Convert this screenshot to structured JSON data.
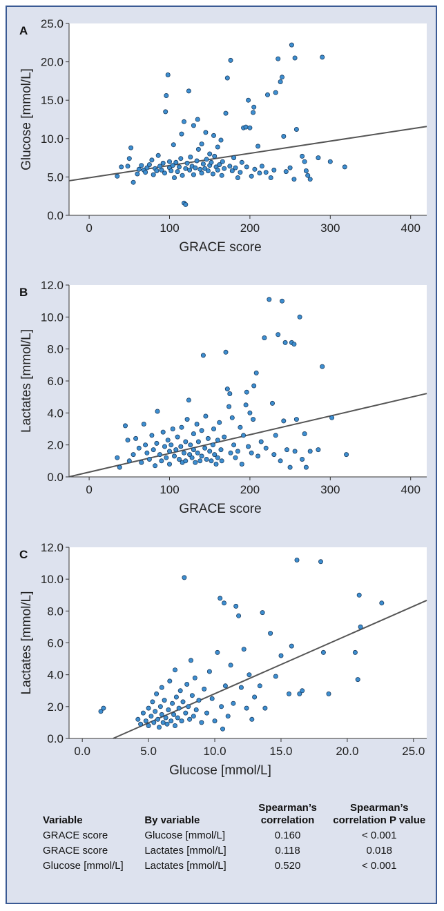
{
  "chart_data": [
    {
      "panel": "A",
      "type": "scatter",
      "xlabel": "GRACE score",
      "ylabel": "Glucose [mmol/L]",
      "xlim": [
        -25,
        420
      ],
      "ylim": [
        0,
        25.0
      ],
      "xticks": [
        "0",
        "100",
        "200",
        "300",
        "400"
      ],
      "yticks": [
        "0.0",
        "5.0",
        "10.0",
        "15.0",
        "20.0",
        "25.0"
      ],
      "fit_line": {
        "intercept": 4.9,
        "slope": 0.0159
      },
      "points": [
        [
          35,
          5.1
        ],
        [
          40,
          6.3
        ],
        [
          48,
          6.4
        ],
        [
          50,
          7.4
        ],
        [
          52,
          8.8
        ],
        [
          55,
          4.3
        ],
        [
          60,
          5.4
        ],
        [
          62,
          6.0
        ],
        [
          65,
          6.5
        ],
        [
          68,
          5.9
        ],
        [
          70,
          5.6
        ],
        [
          72,
          6.2
        ],
        [
          75,
          6.6
        ],
        [
          78,
          7.2
        ],
        [
          80,
          5.3
        ],
        [
          82,
          6.1
        ],
        [
          84,
          5.8
        ],
        [
          86,
          7.8
        ],
        [
          88,
          6.4
        ],
        [
          90,
          5.9
        ],
        [
          92,
          6.8
        ],
        [
          94,
          5.5
        ],
        [
          95,
          13.5
        ],
        [
          96,
          15.6
        ],
        [
          98,
          18.3
        ],
        [
          100,
          6.2
        ],
        [
          100,
          7.0
        ],
        [
          102,
          5.8
        ],
        [
          104,
          6.5
        ],
        [
          105,
          9.2
        ],
        [
          106,
          4.9
        ],
        [
          108,
          6.9
        ],
        [
          110,
          5.7
        ],
        [
          112,
          6.3
        ],
        [
          114,
          7.4
        ],
        [
          115,
          10.6
        ],
        [
          116,
          5.2
        ],
        [
          118,
          12.2
        ],
        [
          118,
          1.6
        ],
        [
          120,
          1.4
        ],
        [
          120,
          6.1
        ],
        [
          122,
          6.8
        ],
        [
          124,
          16.2
        ],
        [
          125,
          5.9
        ],
        [
          126,
          7.6
        ],
        [
          128,
          6.4
        ],
        [
          130,
          11.7
        ],
        [
          130,
          5.3
        ],
        [
          132,
          6.2
        ],
        [
          134,
          7.1
        ],
        [
          135,
          12.5
        ],
        [
          136,
          8.6
        ],
        [
          138,
          6.0
        ],
        [
          140,
          5.5
        ],
        [
          140,
          9.3
        ],
        [
          142,
          6.7
        ],
        [
          144,
          6.1
        ],
        [
          145,
          10.8
        ],
        [
          146,
          7.3
        ],
        [
          148,
          5.8
        ],
        [
          150,
          6.5
        ],
        [
          150,
          8.0
        ],
        [
          152,
          6.9
        ],
        [
          154,
          5.4
        ],
        [
          155,
          10.4
        ],
        [
          156,
          7.7
        ],
        [
          158,
          6.3
        ],
        [
          160,
          5.9
        ],
        [
          160,
          8.9
        ],
        [
          162,
          6.6
        ],
        [
          164,
          9.8
        ],
        [
          165,
          5.2
        ],
        [
          166,
          7.0
        ],
        [
          168,
          6.1
        ],
        [
          170,
          13.3
        ],
        [
          172,
          17.9
        ],
        [
          175,
          6.4
        ],
        [
          176,
          20.2
        ],
        [
          178,
          5.8
        ],
        [
          180,
          7.5
        ],
        [
          182,
          6.2
        ],
        [
          185,
          4.9
        ],
        [
          188,
          5.6
        ],
        [
          190,
          6.9
        ],
        [
          192,
          11.4
        ],
        [
          195,
          11.5
        ],
        [
          196,
          6.3
        ],
        [
          198,
          15.0
        ],
        [
          200,
          11.4
        ],
        [
          202,
          5.1
        ],
        [
          204,
          13.4
        ],
        [
          205,
          14.1
        ],
        [
          206,
          6.0
        ],
        [
          210,
          9.0
        ],
        [
          212,
          5.5
        ],
        [
          215,
          6.4
        ],
        [
          220,
          5.6
        ],
        [
          222,
          15.7
        ],
        [
          226,
          4.9
        ],
        [
          230,
          5.9
        ],
        [
          232,
          16.0
        ],
        [
          235,
          20.4
        ],
        [
          238,
          17.4
        ],
        [
          240,
          18.0
        ],
        [
          242,
          10.3
        ],
        [
          245,
          5.7
        ],
        [
          250,
          6.2
        ],
        [
          252,
          22.2
        ],
        [
          255,
          4.7
        ],
        [
          256,
          20.5
        ],
        [
          258,
          11.2
        ],
        [
          265,
          7.7
        ],
        [
          268,
          7.0
        ],
        [
          270,
          5.8
        ],
        [
          272,
          5.2
        ],
        [
          275,
          4.7
        ],
        [
          285,
          7.5
        ],
        [
          290,
          20.6
        ],
        [
          300,
          7.0
        ],
        [
          318,
          6.3
        ]
      ]
    },
    {
      "panel": "B",
      "type": "scatter",
      "xlabel": "GRACE score",
      "ylabel": "Lactates [mmol/L]",
      "xlim": [
        -25,
        420
      ],
      "ylim": [
        0,
        12.0
      ],
      "xticks": [
        "0",
        "100",
        "200",
        "300",
        "400"
      ],
      "yticks": [
        "0.0",
        "2.0",
        "4.0",
        "6.0",
        "8.0",
        "10.0",
        "12.0"
      ],
      "fit_line": {
        "intercept": 0.3,
        "slope": 0.0117
      },
      "points": [
        [
          35,
          1.2
        ],
        [
          38,
          0.6
        ],
        [
          45,
          3.2
        ],
        [
          48,
          2.3
        ],
        [
          50,
          1.0
        ],
        [
          55,
          1.4
        ],
        [
          58,
          2.4
        ],
        [
          62,
          1.8
        ],
        [
          65,
          0.9
        ],
        [
          68,
          3.3
        ],
        [
          70,
          2.0
        ],
        [
          72,
          1.5
        ],
        [
          75,
          1.1
        ],
        [
          78,
          2.6
        ],
        [
          80,
          1.7
        ],
        [
          82,
          0.7
        ],
        [
          84,
          2.1
        ],
        [
          85,
          4.1
        ],
        [
          88,
          1.4
        ],
        [
          90,
          1.0
        ],
        [
          92,
          2.8
        ],
        [
          94,
          1.9
        ],
        [
          96,
          1.2
        ],
        [
          98,
          2.3
        ],
        [
          100,
          1.6
        ],
        [
          100,
          0.8
        ],
        [
          102,
          2.0
        ],
        [
          104,
          3.0
        ],
        [
          106,
          1.3
        ],
        [
          108,
          1.7
        ],
        [
          110,
          2.5
        ],
        [
          112,
          1.1
        ],
        [
          114,
          1.9
        ],
        [
          115,
          3.1
        ],
        [
          116,
          0.9
        ],
        [
          118,
          1.5
        ],
        [
          120,
          2.2
        ],
        [
          120,
          1.0
        ],
        [
          122,
          3.6
        ],
        [
          124,
          4.8
        ],
        [
          125,
          1.4
        ],
        [
          126,
          2.0
        ],
        [
          128,
          1.2
        ],
        [
          130,
          2.7
        ],
        [
          130,
          1.7
        ],
        [
          132,
          0.9
        ],
        [
          134,
          3.3
        ],
        [
          135,
          1.5
        ],
        [
          136,
          2.2
        ],
        [
          138,
          1.0
        ],
        [
          140,
          2.9
        ],
        [
          140,
          1.3
        ],
        [
          142,
          7.6
        ],
        [
          144,
          1.8
        ],
        [
          145,
          3.8
        ],
        [
          146,
          1.1
        ],
        [
          148,
          2.4
        ],
        [
          150,
          1.6
        ],
        [
          152,
          1.0
        ],
        [
          154,
          2.0
        ],
        [
          155,
          3.0
        ],
        [
          156,
          1.4
        ],
        [
          158,
          0.8
        ],
        [
          160,
          2.3
        ],
        [
          160,
          1.2
        ],
        [
          162,
          3.4
        ],
        [
          164,
          1.7
        ],
        [
          165,
          1.0
        ],
        [
          168,
          2.5
        ],
        [
          170,
          7.8
        ],
        [
          172,
          5.5
        ],
        [
          174,
          4.4
        ],
        [
          175,
          5.2
        ],
        [
          176,
          1.5
        ],
        [
          178,
          3.7
        ],
        [
          180,
          2.0
        ],
        [
          182,
          1.2
        ],
        [
          185,
          1.6
        ],
        [
          188,
          3.1
        ],
        [
          190,
          0.8
        ],
        [
          192,
          2.6
        ],
        [
          195,
          4.5
        ],
        [
          196,
          5.3
        ],
        [
          198,
          1.9
        ],
        [
          200,
          4.0
        ],
        [
          202,
          1.5
        ],
        [
          204,
          3.6
        ],
        [
          205,
          5.7
        ],
        [
          208,
          6.5
        ],
        [
          210,
          1.3
        ],
        [
          214,
          2.2
        ],
        [
          218,
          8.7
        ],
        [
          220,
          1.8
        ],
        [
          224,
          11.1
        ],
        [
          228,
          4.6
        ],
        [
          230,
          1.4
        ],
        [
          232,
          2.6
        ],
        [
          235,
          8.9
        ],
        [
          238,
          1.0
        ],
        [
          240,
          11.0
        ],
        [
          242,
          3.5
        ],
        [
          244,
          8.4
        ],
        [
          246,
          1.7
        ],
        [
          250,
          0.6
        ],
        [
          252,
          8.4
        ],
        [
          255,
          8.3
        ],
        [
          256,
          1.6
        ],
        [
          258,
          3.6
        ],
        [
          262,
          10.0
        ],
        [
          265,
          1.1
        ],
        [
          268,
          2.7
        ],
        [
          270,
          0.6
        ],
        [
          275,
          1.6
        ],
        [
          285,
          1.7
        ],
        [
          290,
          6.9
        ],
        [
          302,
          3.7
        ],
        [
          320,
          1.4
        ]
      ]
    },
    {
      "panel": "C",
      "type": "scatter",
      "xlabel": "Glucose [mmol/L]",
      "ylabel": "Lactates [mmol/L]",
      "xlim": [
        -1.0,
        26.0
      ],
      "ylim": [
        0,
        12.0
      ],
      "xticks": [
        "0.0",
        "5.0",
        "10.0",
        "15.0",
        "20.0",
        "25.0"
      ],
      "yticks": [
        "0.0",
        "2.0",
        "4.0",
        "6.0",
        "8.0",
        "10.0",
        "12.0"
      ],
      "fit_line": {
        "intercept": -0.85,
        "slope": 0.366
      },
      "points": [
        [
          1.4,
          1.7
        ],
        [
          1.6,
          1.9
        ],
        [
          4.2,
          1.2
        ],
        [
          4.4,
          0.9
        ],
        [
          4.6,
          1.6
        ],
        [
          4.8,
          1.1
        ],
        [
          5.0,
          1.9
        ],
        [
          5.0,
          0.8
        ],
        [
          5.2,
          1.4
        ],
        [
          5.3,
          2.3
        ],
        [
          5.4,
          1.0
        ],
        [
          5.5,
          1.7
        ],
        [
          5.6,
          2.8
        ],
        [
          5.7,
          1.2
        ],
        [
          5.8,
          0.7
        ],
        [
          5.9,
          2.0
        ],
        [
          6.0,
          1.5
        ],
        [
          6.0,
          3.2
        ],
        [
          6.1,
          1.0
        ],
        [
          6.2,
          2.4
        ],
        [
          6.3,
          1.3
        ],
        [
          6.4,
          0.9
        ],
        [
          6.5,
          1.8
        ],
        [
          6.6,
          3.6
        ],
        [
          6.7,
          1.1
        ],
        [
          6.8,
          2.2
        ],
        [
          6.9,
          1.5
        ],
        [
          7.0,
          4.3
        ],
        [
          7.0,
          0.8
        ],
        [
          7.1,
          2.6
        ],
        [
          7.2,
          1.3
        ],
        [
          7.3,
          1.9
        ],
        [
          7.4,
          3.0
        ],
        [
          7.5,
          1.1
        ],
        [
          7.6,
          2.3
        ],
        [
          7.7,
          10.1
        ],
        [
          7.8,
          1.6
        ],
        [
          7.9,
          3.4
        ],
        [
          8.0,
          2.0
        ],
        [
          8.1,
          1.2
        ],
        [
          8.2,
          4.9
        ],
        [
          8.3,
          2.7
        ],
        [
          8.4,
          1.4
        ],
        [
          8.5,
          3.8
        ],
        [
          8.6,
          1.8
        ],
        [
          8.8,
          2.4
        ],
        [
          9.0,
          1.0
        ],
        [
          9.2,
          3.1
        ],
        [
          9.4,
          1.6
        ],
        [
          9.6,
          4.2
        ],
        [
          9.8,
          2.5
        ],
        [
          10.0,
          1.1
        ],
        [
          10.2,
          5.4
        ],
        [
          10.4,
          8.8
        ],
        [
          10.5,
          2.0
        ],
        [
          10.6,
          0.6
        ],
        [
          10.7,
          8.5
        ],
        [
          10.8,
          3.3
        ],
        [
          11.0,
          1.4
        ],
        [
          11.2,
          4.6
        ],
        [
          11.4,
          2.2
        ],
        [
          11.6,
          8.3
        ],
        [
          11.8,
          7.7
        ],
        [
          12.0,
          3.2
        ],
        [
          12.2,
          5.6
        ],
        [
          12.4,
          1.9
        ],
        [
          12.6,
          4.0
        ],
        [
          12.8,
          1.2
        ],
        [
          13.0,
          2.6
        ],
        [
          13.4,
          3.3
        ],
        [
          13.6,
          7.9
        ],
        [
          13.8,
          1.9
        ],
        [
          14.2,
          6.6
        ],
        [
          14.6,
          3.9
        ],
        [
          15.0,
          5.2
        ],
        [
          15.6,
          2.8
        ],
        [
          15.8,
          5.8
        ],
        [
          16.2,
          11.2
        ],
        [
          16.4,
          2.8
        ],
        [
          16.6,
          3.0
        ],
        [
          18.0,
          11.1
        ],
        [
          18.2,
          5.4
        ],
        [
          18.6,
          2.8
        ],
        [
          20.6,
          5.4
        ],
        [
          20.8,
          3.7
        ],
        [
          20.9,
          9.0
        ],
        [
          21.0,
          7.0
        ],
        [
          22.6,
          8.5
        ]
      ]
    }
  ],
  "table": {
    "headers": [
      "Variable",
      "By variable",
      "Spearman’s correlation",
      "Spearman’s correlation P value"
    ],
    "rows": [
      [
        "GRACE score",
        "Glucose [mmol/L]",
        "0.160",
        "< 0.001"
      ],
      [
        "GRACE score",
        "Lactates [mmol/L]",
        "0.118",
        "0.018"
      ],
      [
        "Glucose [mmol/L]",
        "Lactates [mmol/L]",
        "0.520",
        "< 0.001"
      ]
    ]
  }
}
